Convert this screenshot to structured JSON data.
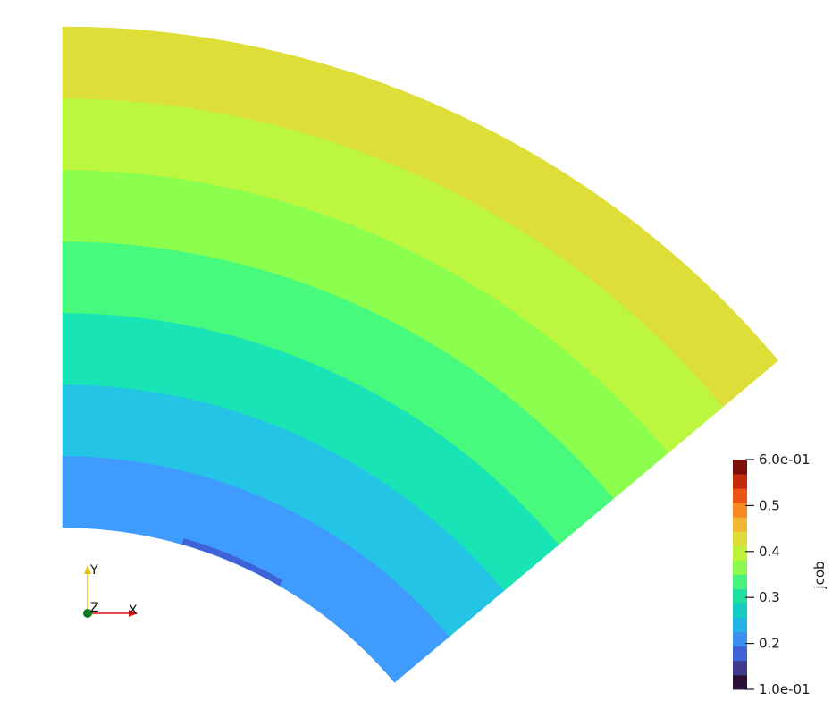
{
  "view": {
    "field_name": "jcob",
    "colors": {
      "background": "#ffffff",
      "axis_x": "#e01010",
      "axis_y": "#e0c800",
      "axis_z": "#0c7a1c"
    }
  },
  "colorbar": {
    "title": "jcob",
    "range": [
      0.1,
      0.6
    ],
    "tick_labels": [
      "6.0e-01",
      "0.5",
      "0.4",
      "0.3",
      "0.2",
      "1.0e-01"
    ],
    "tick_values": [
      0.6,
      0.5,
      0.4,
      0.3,
      0.2,
      0.1
    ],
    "bands": [
      "#2b1035",
      "#3f3a8c",
      "#3f63d6",
      "#3a8ff0",
      "#22b4e8",
      "#17cdc1",
      "#1fdfa0",
      "#46f27e",
      "#8bfa4d",
      "#c0f23a",
      "#dddd38",
      "#f3b632",
      "#f88a24",
      "#ea5515",
      "#c22c0a",
      "#7d0f0a"
    ]
  },
  "field": {
    "inner_sliver_value": 0.18,
    "bands": [
      {
        "value": 0.21,
        "color": "#3f9bfe"
      },
      {
        "value": 0.24,
        "color": "#23c4e4"
      },
      {
        "value": 0.27,
        "color": "#19e4b5"
      },
      {
        "value": 0.3,
        "color": "#47fa7e"
      },
      {
        "value": 0.33,
        "color": "#8cfe4e"
      },
      {
        "value": 0.37,
        "color": "#bdf63e"
      },
      {
        "value": 0.4,
        "color": "#dede38"
      }
    ]
  },
  "orientation_axes": {
    "x_label": "X",
    "y_label": "Y",
    "z_label": "Z"
  }
}
